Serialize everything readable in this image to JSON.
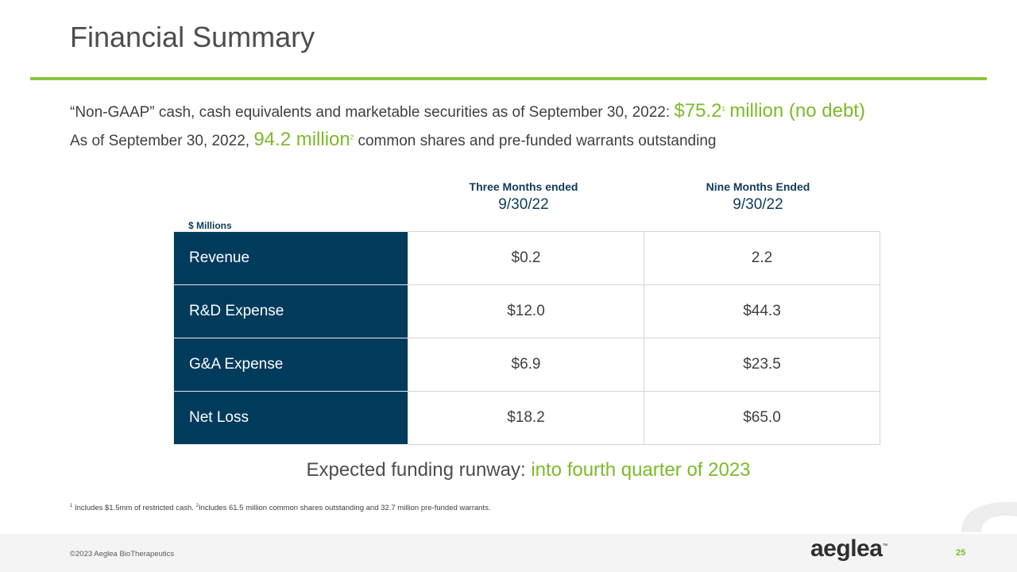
{
  "slide": {
    "title": "Financial Summary",
    "page_number": "25",
    "copyright": "©2023 Aeglea BioTherapeutics",
    "logo_text": "aeglea",
    "logo_mark": "™"
  },
  "intro": {
    "line1_text": "“Non-GAAP” cash, cash equivalents and marketable securities as of September 30, 2022:",
    "line1_value": "$75.2",
    "line1_sup": "1",
    "line1_suffix": "million (no debt)",
    "line2_prefix": "As of September 30, 2022,",
    "line2_value": "94.2 million",
    "line2_sup": "2",
    "line2_suffix": "common shares and pre-funded warrants outstanding"
  },
  "table": {
    "units_label": "$ Millions",
    "columns": [
      {
        "label": "Three Months ended",
        "date": "9/30/22"
      },
      {
        "label": "Nine Months Ended",
        "date": "9/30/22"
      }
    ],
    "rows": [
      {
        "label": "Revenue",
        "values": [
          "$0.2",
          "2.2"
        ]
      },
      {
        "label": "R&D Expense",
        "values": [
          "$12.0",
          "$44.3"
        ]
      },
      {
        "label": "G&A Expense",
        "values": [
          "$6.9",
          "$23.5"
        ]
      },
      {
        "label": "Net Loss",
        "values": [
          "$18.2",
          "$65.0"
        ]
      }
    ]
  },
  "runway": {
    "label": "Expected funding runway:",
    "value": "into fourth quarter of 2023"
  },
  "footnotes": {
    "mark1": "1",
    "text1": "Includes $1.5mm of restricted cash.",
    "mark2": "2",
    "text2": "Includes 61.5 million common shares outstanding and 32.7 million pre-funded warrants."
  },
  "colors": {
    "accent_green": "#7dba2a",
    "navy": "#003b5c",
    "rule_green": "#8dc63f"
  }
}
